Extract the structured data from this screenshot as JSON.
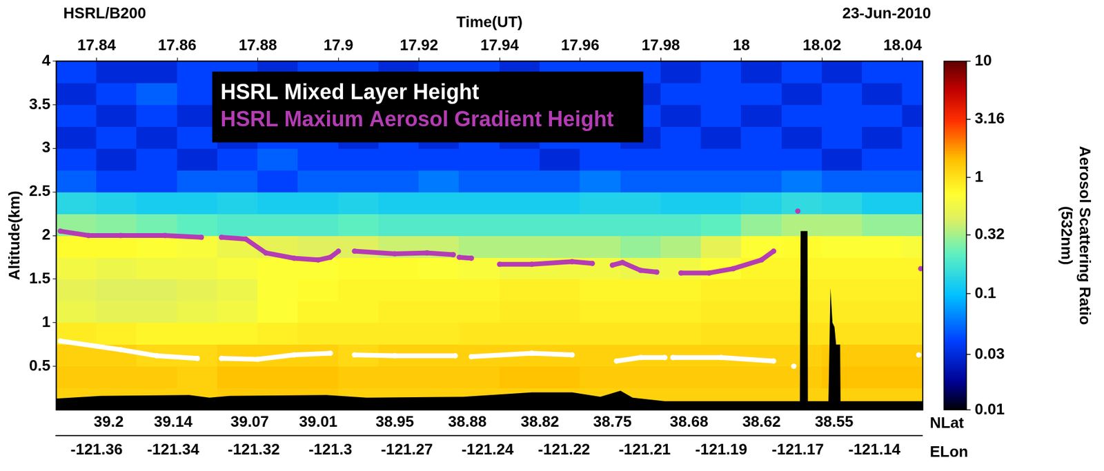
{
  "chart_data": {
    "type": "heatmap",
    "title": "HSRL/B200",
    "subtitle": "23-Jun-2010",
    "xlabel": "Time(UT)",
    "ylabel": "Altitude(km)",
    "xlim": [
      17.83,
      18.045
    ],
    "xticks": [
      17.84,
      17.86,
      17.88,
      17.9,
      17.92,
      17.94,
      17.96,
      17.98,
      18,
      18.02,
      18.04
    ],
    "ylim": [
      0,
      4
    ],
    "yticks": [
      0.5,
      1,
      1.5,
      2,
      2.5,
      3,
      3.5,
      4
    ],
    "grid": false,
    "legend": "top",
    "lat_axis": {
      "title": "NLat",
      "ticks": [
        {
          "x": 17.843,
          "label": "39.2"
        },
        {
          "x": 17.859,
          "label": "39.14"
        },
        {
          "x": 17.878,
          "label": "39.07"
        },
        {
          "x": 17.895,
          "label": "39.01"
        },
        {
          "x": 17.914,
          "label": "38.95"
        },
        {
          "x": 17.932,
          "label": "38.88"
        },
        {
          "x": 17.95,
          "label": "38.82"
        },
        {
          "x": 17.968,
          "label": "38.75"
        },
        {
          "x": 17.987,
          "label": "38.68"
        },
        {
          "x": 18.005,
          "label": "38.62"
        },
        {
          "x": 18.023,
          "label": "38.55"
        }
      ]
    },
    "lon_axis": {
      "title": "ELon",
      "ticks": [
        {
          "x": 17.84,
          "label": "-121.36"
        },
        {
          "x": 17.859,
          "label": "-121.34"
        },
        {
          "x": 17.879,
          "label": "-121.32"
        },
        {
          "x": 17.898,
          "label": "-121.3"
        },
        {
          "x": 17.917,
          "label": "-121.27"
        },
        {
          "x": 17.937,
          "label": "-121.24"
        },
        {
          "x": 17.956,
          "label": "-121.22"
        },
        {
          "x": 17.976,
          "label": "-121.21"
        },
        {
          "x": 17.995,
          "label": "-121.19"
        },
        {
          "x": 18.014,
          "label": "-121.17"
        },
        {
          "x": 18.033,
          "label": "-121.14"
        }
      ]
    },
    "colorbar": {
      "title": "Aerosol Scattering Ratio (532nm)",
      "range": [
        0.01,
        10
      ],
      "ticks": [
        0.01,
        0.03,
        0.1,
        0.32,
        1,
        3.16,
        10
      ],
      "log": true
    },
    "cells": {
      "x_edges": [
        17.83,
        17.84,
        17.85,
        17.86,
        17.87,
        17.88,
        17.89,
        17.9,
        17.91,
        17.92,
        17.93,
        17.94,
        17.95,
        17.96,
        17.97,
        17.98,
        17.99,
        18,
        18.01,
        18.02,
        18.03,
        18.04,
        18.05
      ],
      "y_edges": [
        0,
        0.25,
        0.5,
        0.75,
        1,
        1.25,
        1.5,
        1.75,
        2,
        2.25,
        2.5,
        2.75,
        3,
        3.25,
        3.5,
        3.75,
        4
      ],
      "values": [
        [
          1.2,
          1.3,
          1.2,
          0.9,
          0.55,
          0.5,
          0.6,
          0.75,
          0.3,
          0.14,
          0.05,
          0.04,
          0.03,
          0.04,
          0.03,
          0.04
        ],
        [
          1.2,
          1.3,
          1.2,
          0.85,
          0.5,
          0.45,
          0.55,
          0.75,
          0.28,
          0.13,
          0.04,
          0.03,
          0.04,
          0.03,
          0.04,
          0.03
        ],
        [
          1.2,
          1.3,
          1.1,
          0.8,
          0.5,
          0.45,
          0.6,
          0.7,
          0.25,
          0.12,
          0.04,
          0.04,
          0.03,
          0.04,
          0.05,
          0.03
        ],
        [
          1.2,
          1.2,
          1.1,
          0.8,
          0.55,
          0.5,
          0.6,
          0.65,
          0.22,
          0.12,
          0.05,
          0.03,
          0.04,
          0.03,
          0.04,
          0.04
        ],
        [
          1.3,
          1.4,
          1.2,
          0.8,
          0.6,
          0.55,
          0.65,
          0.55,
          0.2,
          0.13,
          0.05,
          0.04,
          0.03,
          0.04,
          0.03,
          0.04
        ],
        [
          1.3,
          1.4,
          1.2,
          0.85,
          0.7,
          0.7,
          0.7,
          0.5,
          0.2,
          0.12,
          0.04,
          0.05,
          0.04,
          0.03,
          0.04,
          0.03
        ],
        [
          1.3,
          1.4,
          1.2,
          0.9,
          0.8,
          0.75,
          0.7,
          0.45,
          0.2,
          0.12,
          0.05,
          0.04,
          0.04,
          0.03,
          0.04,
          0.04
        ],
        [
          1.2,
          1.3,
          1.1,
          0.9,
          0.8,
          0.8,
          0.75,
          0.45,
          0.22,
          0.13,
          0.05,
          0.04,
          0.03,
          0.04,
          0.03,
          0.04
        ],
        [
          1.2,
          1.3,
          1.2,
          0.9,
          0.85,
          0.8,
          0.75,
          0.4,
          0.2,
          0.12,
          0.05,
          0.04,
          0.04,
          0.03,
          0.04,
          0.03
        ],
        [
          1.2,
          1.3,
          1.2,
          0.9,
          0.85,
          0.8,
          0.7,
          0.4,
          0.2,
          0.12,
          0.06,
          0.04,
          0.03,
          0.04,
          0.03,
          0.04
        ],
        [
          1.2,
          1.3,
          1.2,
          0.95,
          0.85,
          0.8,
          0.65,
          0.35,
          0.2,
          0.12,
          0.05,
          0.04,
          0.04,
          0.03,
          0.04,
          0.04
        ],
        [
          1.2,
          1.4,
          1.2,
          0.95,
          0.9,
          0.85,
          0.6,
          0.35,
          0.2,
          0.12,
          0.05,
          0.04,
          0.03,
          0.04,
          0.04,
          0.03
        ],
        [
          1.2,
          1.4,
          1.2,
          0.95,
          0.9,
          0.85,
          0.6,
          0.35,
          0.2,
          0.12,
          0.05,
          0.03,
          0.04,
          0.04,
          0.03,
          0.04
        ],
        [
          1.2,
          1.3,
          1.2,
          0.95,
          0.85,
          0.8,
          0.6,
          0.35,
          0.2,
          0.13,
          0.06,
          0.04,
          0.04,
          0.03,
          0.04,
          0.04
        ],
        [
          1.2,
          1.3,
          1.2,
          0.95,
          0.85,
          0.8,
          0.55,
          0.3,
          0.2,
          0.13,
          0.05,
          0.04,
          0.03,
          0.04,
          0.03,
          0.04
        ],
        [
          1.2,
          1.3,
          1.2,
          0.95,
          0.85,
          0.8,
          0.6,
          0.35,
          0.2,
          0.12,
          0.05,
          0.04,
          0.04,
          0.03,
          0.04,
          0.03
        ],
        [
          1.2,
          1.3,
          1.2,
          1,
          0.9,
          0.85,
          0.7,
          0.5,
          0.22,
          0.12,
          0.05,
          0.04,
          0.03,
          0.04,
          0.04,
          0.04
        ],
        [
          1.2,
          1.3,
          1.2,
          1,
          0.9,
          0.85,
          0.8,
          0.7,
          0.3,
          0.13,
          0.05,
          0.04,
          0.04,
          0.03,
          0.04,
          0.03
        ],
        [
          1.2,
          1.3,
          1.2,
          1,
          0.9,
          0.85,
          0.8,
          0.75,
          0.35,
          0.15,
          0.06,
          0.04,
          0.03,
          0.04,
          0.03,
          0.04
        ],
        [
          1.2,
          1.4,
          1.3,
          1,
          0.9,
          0.85,
          0.8,
          0.7,
          0.35,
          0.14,
          0.05,
          0.03,
          0.04,
          0.04,
          0.04,
          0.03
        ],
        [
          1.2,
          1.4,
          1.3,
          1,
          0.9,
          0.85,
          0.8,
          0.7,
          0.3,
          0.12,
          0.05,
          0.04,
          0.03,
          0.04,
          0.03,
          0.04
        ],
        [
          1.2,
          1.4,
          1.3,
          1,
          0.9,
          0.85,
          0.8,
          0.65,
          0.3,
          0.12,
          0.05,
          0.04,
          0.04,
          0.03,
          0.04,
          0.04
        ]
      ]
    },
    "series": [
      {
        "name": "HSRL Mixed Layer Height",
        "color": "#ffffff",
        "type": "line",
        "marker": "circle",
        "line_style": "solid",
        "x": [
          17.831,
          17.846,
          17.855,
          17.865,
          17.868,
          17.871,
          17.88,
          17.889,
          17.898,
          17.901,
          17.904,
          17.914,
          17.929,
          17.931,
          17.933,
          17.948,
          17.958,
          17.964,
          17.969,
          17.975,
          17.981,
          17.982,
          17.983,
          17.995,
          18.008,
          18.01,
          18.013,
          18.03,
          18.044
        ],
        "values": [
          0.79,
          0.69,
          0.62,
          0.59,
          null,
          0.59,
          0.58,
          0.63,
          0.65,
          null,
          0.63,
          0.62,
          0.62,
          null,
          0.61,
          0.65,
          0.63,
          null,
          0.56,
          0.6,
          0.6,
          null,
          0.6,
          0.6,
          0.56,
          null,
          0.5,
          null,
          0.63
        ]
      },
      {
        "name": "HSRL Maxium Aerosol Gradient Height",
        "color": "#b43cb4",
        "type": "line",
        "marker": "circle",
        "line_style": "solid",
        "x": [
          17.831,
          17.838,
          17.846,
          17.857,
          17.866,
          17.868,
          17.871,
          17.877,
          17.882,
          17.889,
          17.895,
          17.898,
          17.9,
          17.902,
          17.904,
          17.914,
          17.922,
          17.9285,
          17.9292,
          17.93,
          17.933,
          17.936,
          17.94,
          17.948,
          17.958,
          17.963,
          17.9655,
          17.968,
          17.9705,
          17.975,
          17.979,
          17.982,
          17.985,
          17.992,
          17.998,
          18.005,
          18.008,
          18.011,
          18.014,
          18.03,
          18.0445
        ],
        "values": [
          2.05,
          2,
          2,
          2,
          1.98,
          null,
          1.98,
          1.96,
          1.8,
          1.74,
          1.72,
          1.75,
          1.82,
          null,
          1.82,
          1.79,
          1.8,
          1.78,
          null,
          1.75,
          1.74,
          null,
          1.67,
          1.67,
          1.7,
          1.68,
          null,
          1.66,
          1.69,
          1.6,
          1.58,
          null,
          1.57,
          1.57,
          1.62,
          1.72,
          1.82,
          null,
          2.28,
          null,
          1.62
        ]
      },
      {
        "color": "#000000",
        "type": "area",
        "x": [
          17.83,
          17.841,
          17.863,
          17.868,
          17.873,
          17.897,
          17.907,
          17.931,
          17.948,
          17.958,
          17.965,
          17.97,
          17.973,
          17.981,
          18.0145,
          18.0147,
          18.0164,
          18.0165,
          18.0216,
          18.0221,
          18.0226,
          18.0231,
          18.0235,
          18.0245,
          18.0246,
          18.045
        ],
        "values": [
          0.13,
          0.16,
          0.17,
          0.14,
          0.16,
          0.17,
          0.14,
          0.15,
          0.2,
          0.2,
          0.15,
          0.22,
          0.14,
          0.1,
          0.1,
          2.05,
          2.05,
          0.1,
          0.1,
          1.4,
          1,
          0.95,
          0.75,
          0.75,
          0.1,
          0.1
        ]
      }
    ]
  }
}
